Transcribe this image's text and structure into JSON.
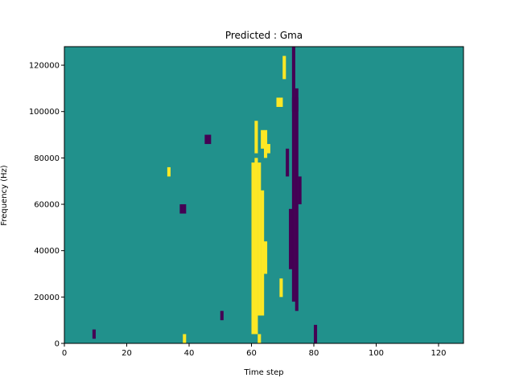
{
  "chart_data": {
    "type": "heatmap",
    "title": "Predicted : Gma",
    "xlabel": "Time step",
    "ylabel": "Frequency (Hz)",
    "xlim": [
      0,
      128
    ],
    "ylim": [
      0,
      128000
    ],
    "x_ticks": [
      0,
      20,
      40,
      60,
      80,
      100,
      120
    ],
    "y_ticks": [
      0,
      20000,
      40000,
      60000,
      80000,
      100000,
      120000
    ],
    "x_tick_labels": [
      "0",
      "20",
      "40",
      "60",
      "80",
      "100",
      "120"
    ],
    "y_tick_labels": [
      "0",
      "20000",
      "40000",
      "60000",
      "80000",
      "100000",
      "120000"
    ],
    "grid": false,
    "colormap": "viridis",
    "levels": [
      {
        "name": "low",
        "value": -1,
        "color": "#440154"
      },
      {
        "name": "background",
        "value": 0,
        "color": "#21918c"
      },
      {
        "name": "high",
        "value": 1,
        "color": "#fde725"
      }
    ],
    "background_value": 0,
    "cells": [
      {
        "x": 60,
        "y0": 4000,
        "y1": 78000,
        "value": 1
      },
      {
        "x": 61,
        "y0": 4000,
        "y1": 80000,
        "value": 1
      },
      {
        "x": 62,
        "y0": 12000,
        "y1": 78000,
        "value": 1
      },
      {
        "x": 63,
        "y0": 12000,
        "y1": 66000,
        "value": 1
      },
      {
        "x": 61,
        "y0": 82000,
        "y1": 96000,
        "value": 1
      },
      {
        "x": 63,
        "y0": 84000,
        "y1": 92000,
        "value": 1
      },
      {
        "x": 64,
        "y0": 80000,
        "y1": 92000,
        "value": 1
      },
      {
        "x": 65,
        "y0": 82000,
        "y1": 86000,
        "value": 1
      },
      {
        "x": 62,
        "y0": 0,
        "y1": 4000,
        "value": 1
      },
      {
        "x": 64,
        "y0": 30000,
        "y1": 44000,
        "value": 1
      },
      {
        "x": 68,
        "y0": 102000,
        "y1": 106000,
        "value": 1
      },
      {
        "x": 69,
        "y0": 102000,
        "y1": 106000,
        "value": 1
      },
      {
        "x": 70,
        "y0": 114000,
        "y1": 124000,
        "value": 1
      },
      {
        "x": 69,
        "y0": 20000,
        "y1": 28000,
        "value": 1
      },
      {
        "x": 73,
        "y0": 18000,
        "y1": 128000,
        "value": -1
      },
      {
        "x": 74,
        "y0": 14000,
        "y1": 110000,
        "value": -1
      },
      {
        "x": 75,
        "y0": 60000,
        "y1": 72000,
        "value": -1
      },
      {
        "x": 72,
        "y0": 32000,
        "y1": 58000,
        "value": -1
      },
      {
        "x": 71,
        "y0": 72000,
        "y1": 84000,
        "value": -1
      },
      {
        "x": 73,
        "y0": 100000,
        "y1": 106000,
        "value": -1
      },
      {
        "x": 74,
        "y0": 100000,
        "y1": 106000,
        "value": -1
      },
      {
        "x": 80,
        "y0": 0,
        "y1": 8000,
        "value": -1
      },
      {
        "x": 45,
        "y0": 86000,
        "y1": 90000,
        "value": -1
      },
      {
        "x": 46,
        "y0": 86000,
        "y1": 90000,
        "value": -1
      },
      {
        "x": 37,
        "y0": 56000,
        "y1": 60000,
        "value": -1
      },
      {
        "x": 38,
        "y0": 56000,
        "y1": 60000,
        "value": -1
      },
      {
        "x": 50,
        "y0": 10000,
        "y1": 14000,
        "value": -1
      },
      {
        "x": 33,
        "y0": 72000,
        "y1": 76000,
        "value": 1
      },
      {
        "x": 38,
        "y0": 0,
        "y1": 4000,
        "value": 1
      },
      {
        "x": 9,
        "y0": 2000,
        "y1": 6000,
        "value": -1
      }
    ]
  }
}
